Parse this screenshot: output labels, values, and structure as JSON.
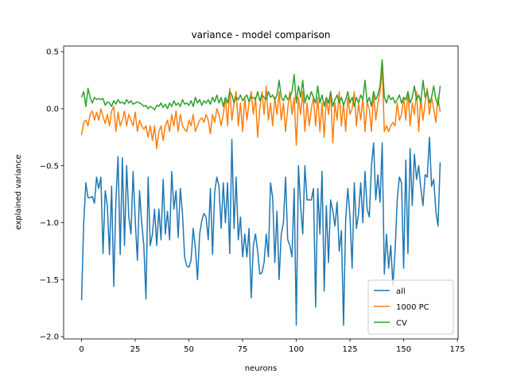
{
  "chart_data": {
    "type": "line",
    "title": "variance - model comparison",
    "xlabel": "neurons",
    "ylabel": "explained variance",
    "x": [
      0,
      1,
      2,
      3,
      4,
      5,
      6,
      7,
      8,
      9,
      10,
      11,
      12,
      13,
      14,
      15,
      16,
      17,
      18,
      19,
      20,
      21,
      22,
      23,
      24,
      25,
      26,
      27,
      28,
      29,
      30,
      31,
      32,
      33,
      34,
      35,
      36,
      37,
      38,
      39,
      40,
      41,
      42,
      43,
      44,
      45,
      46,
      47,
      48,
      49,
      50,
      51,
      52,
      53,
      54,
      55,
      56,
      57,
      58,
      59,
      60,
      61,
      62,
      63,
      64,
      65,
      66,
      67,
      68,
      69,
      70,
      71,
      72,
      73,
      74,
      75,
      76,
      77,
      78,
      79,
      80,
      81,
      82,
      83,
      84,
      85,
      86,
      87,
      88,
      89,
      90,
      91,
      92,
      93,
      94,
      95,
      96,
      97,
      98,
      99,
      100,
      101,
      102,
      103,
      104,
      105,
      106,
      107,
      108,
      109,
      110,
      111,
      112,
      113,
      114,
      115,
      116,
      117,
      118,
      119,
      120,
      121,
      122,
      123,
      124,
      125,
      126,
      127,
      128,
      129,
      130,
      131,
      132,
      133,
      134,
      135,
      136,
      137,
      138,
      139,
      140,
      141,
      142,
      143,
      144,
      145,
      146,
      147,
      148,
      149,
      150,
      151,
      152,
      153,
      154,
      155,
      156,
      157,
      158,
      159,
      160,
      161,
      162,
      163,
      164,
      165,
      166,
      167
    ],
    "series": [
      {
        "name": "all",
        "color": "#1f77b4",
        "values": [
          -1.68,
          -1.0,
          -0.65,
          -0.78,
          -0.78,
          -0.77,
          -0.83,
          -0.6,
          -0.7,
          -0.6,
          -1.27,
          -0.72,
          -0.85,
          -1.28,
          -0.68,
          -1.56,
          -0.8,
          -0.42,
          -1.28,
          -0.43,
          -1.2,
          -0.5,
          -0.95,
          -1.1,
          -0.55,
          -0.98,
          -1.33,
          -0.72,
          -1.0,
          -1.2,
          -1.67,
          -0.6,
          -1.2,
          -1.1,
          -0.88,
          -1.2,
          -0.88,
          -1.15,
          -0.62,
          -1.1,
          -0.9,
          -1.15,
          -0.55,
          -0.88,
          -0.72,
          -1.13,
          -0.7,
          -0.92,
          -1.3,
          -1.38,
          -1.39,
          -1.33,
          -1.05,
          -1.22,
          -1.5,
          -1.1,
          -0.98,
          -0.92,
          -0.95,
          -1.15,
          -0.7,
          -1.28,
          -0.73,
          -0.6,
          -0.68,
          -1.05,
          -0.65,
          -1.0,
          -0.65,
          -1.27,
          -0.27,
          -1.05,
          -0.6,
          -1.15,
          -0.95,
          -1.3,
          -1.1,
          -1.3,
          -1.05,
          -1.66,
          -1.2,
          -1.1,
          -1.25,
          -1.45,
          -1.44,
          -1.35,
          -1.1,
          -1.3,
          -0.65,
          -0.78,
          -1.35,
          -0.9,
          -1.5,
          -1.1,
          -1.0,
          -0.6,
          -1.15,
          -1.2,
          -1.3,
          -0.7,
          -1.9,
          -0.5,
          -0.85,
          -1.1,
          -0.5,
          -0.8,
          -0.8,
          -0.8,
          -0.7,
          -1.74,
          -0.7,
          -1.1,
          -0.55,
          -1.6,
          -0.85,
          -1.35,
          -0.8,
          -0.9,
          -1.03,
          -0.82,
          -1.25,
          -1.07,
          -1.9,
          -0.97,
          -0.7,
          -0.95,
          -1.4,
          -0.65,
          -1.05,
          -0.92,
          -0.65,
          -1.0,
          -0.55,
          -0.88,
          -0.95,
          -0.5,
          -0.3,
          -0.8,
          -0.58,
          -0.82,
          -0.3,
          -1.45,
          -1.1,
          -1.4,
          -1.2,
          -1.55,
          -1.25,
          -0.8,
          -0.6,
          -0.65,
          -1.4,
          -0.45,
          -1.27,
          -0.35,
          -0.85,
          -0.4,
          -0.62,
          -0.5,
          -0.7,
          -0.85,
          -0.58,
          -0.6,
          -0.25,
          -0.68,
          -0.62,
          -0.9,
          -1.03,
          -0.47
        ]
      },
      {
        "name": "1000 PC",
        "color": "#ff7f0e",
        "values": [
          -0.23,
          -0.12,
          -0.1,
          -0.15,
          -0.05,
          -0.02,
          -0.1,
          -0.03,
          -0.1,
          0.0,
          -0.07,
          -0.13,
          -0.05,
          -0.15,
          -0.02,
          0.02,
          -0.2,
          -0.03,
          -0.15,
          -0.1,
          -0.02,
          -0.15,
          -0.05,
          -0.1,
          -0.15,
          -0.03,
          -0.2,
          -0.1,
          -0.15,
          -0.18,
          -0.15,
          -0.25,
          -0.15,
          -0.28,
          -0.15,
          -0.35,
          -0.2,
          -0.15,
          -0.28,
          -0.15,
          -0.1,
          -0.2,
          -0.05,
          -0.15,
          -0.02,
          -0.2,
          -0.05,
          -0.15,
          -0.18,
          -0.2,
          -0.1,
          -0.15,
          -0.05,
          -0.2,
          -0.15,
          -0.1,
          -0.08,
          -0.12,
          -0.05,
          -0.1,
          -0.22,
          -0.05,
          -0.12,
          0.0,
          -0.05,
          -0.15,
          -0.05,
          0.1,
          -0.15,
          0.18,
          -0.1,
          0.05,
          0.15,
          -0.15,
          0.05,
          -0.2,
          0.1,
          -0.1,
          0.05,
          0.15,
          -0.05,
          0.1,
          -0.25,
          0.0,
          0.15,
          -0.05,
          0.2,
          -0.1,
          0.05,
          -0.15,
          0.1,
          -0.05,
          0.15,
          -0.1,
          0.05,
          -0.2,
          0.0,
          0.15,
          -0.05,
          0.1,
          -0.32,
          0.1,
          -0.05,
          0.15,
          -0.2,
          0.05,
          -0.15,
          0.0,
          0.1,
          -0.15,
          0.1,
          -0.2,
          0.05,
          -0.25,
          0.1,
          -0.05,
          0.15,
          -0.3,
          0.05,
          -0.1,
          0.15,
          -0.15,
          0.05,
          -0.2,
          0.1,
          -0.05,
          0.0,
          0.15,
          -0.15,
          0.05,
          -0.1,
          0.1,
          -0.2,
          0.05,
          0.0,
          -0.2,
          0.15,
          -0.1,
          0.05,
          0.15,
          0.35,
          -0.2,
          -0.15,
          -0.2,
          -0.15,
          -0.12,
          -0.15,
          0.05,
          -0.1,
          -0.05,
          0.1,
          -0.1,
          0.15,
          -0.15,
          0.05,
          -0.05,
          0.15,
          -0.2,
          0.1,
          -0.1,
          0.05,
          0.18,
          -0.05,
          0.1,
          0.0,
          -0.12,
          0.1,
          -0.03
        ]
      },
      {
        "name": "CV",
        "color": "#2ca02c",
        "values": [
          0.1,
          0.15,
          0.02,
          0.18,
          0.1,
          0.05,
          0.1,
          0.08,
          0.09,
          0.08,
          0.09,
          0.03,
          0.06,
          0.05,
          0.02,
          0.07,
          0.04,
          0.08,
          0.05,
          0.06,
          0.04,
          0.08,
          0.05,
          0.07,
          0.04,
          0.05,
          0.06,
          0.05,
          0.04,
          0.02,
          0.03,
          0.0,
          0.02,
          0.01,
          -0.01,
          0.03,
          0.02,
          0.05,
          0.01,
          0.04,
          0.0,
          0.05,
          0.02,
          0.07,
          0.03,
          0.05,
          0.02,
          0.08,
          0.04,
          0.05,
          0.03,
          0.07,
          0.02,
          0.1,
          0.05,
          0.08,
          0.03,
          0.07,
          0.05,
          0.08,
          0.04,
          0.1,
          0.06,
          0.12,
          0.05,
          0.1,
          0.02,
          0.1,
          0.05,
          0.15,
          0.12,
          0.05,
          0.1,
          0.08,
          0.12,
          0.07,
          0.1,
          0.12,
          0.06,
          0.1,
          0.1,
          0.08,
          0.15,
          0.07,
          0.12,
          0.1,
          0.08,
          0.15,
          0.1,
          0.12,
          0.08,
          0.12,
          0.25,
          0.1,
          0.07,
          0.12,
          0.08,
          0.1,
          0.15,
          0.3,
          0.05,
          0.2,
          0.1,
          0.25,
          0.05,
          0.12,
          0.08,
          0.15,
          0.1,
          0.05,
          0.2,
          0.05,
          0.12,
          0.02,
          0.1,
          0.05,
          0.15,
          0.02,
          0.08,
          0.12,
          0.05,
          0.1,
          0.03,
          0.08,
          0.15,
          0.05,
          0.1,
          0.02,
          0.1,
          0.05,
          0.12,
          0.08,
          0.25,
          0.05,
          0.1,
          0.02,
          0.15,
          0.08,
          0.12,
          0.2,
          0.43,
          0.1,
          0.05,
          0.12,
          0.08,
          0.1,
          0.05,
          0.08,
          0.12,
          0.05,
          0.1,
          0.08,
          0.15,
          0.05,
          0.1,
          0.2,
          0.08,
          0.12,
          0.05,
          0.25,
          0.1,
          0.15,
          0.05,
          0.1,
          0.2,
          0.08,
          0.03,
          0.2
        ]
      }
    ],
    "xlim": [
      -8.35,
      175.35
    ],
    "ylim": [
      -2.02,
      0.55
    ],
    "xticks": [
      0,
      25,
      50,
      75,
      100,
      125,
      150,
      175
    ],
    "yticks": [
      {
        "value": -2,
        "label": "−2.0"
      },
      {
        "value": -1.5,
        "label": "−1.5"
      },
      {
        "value": -1,
        "label": "−1.0"
      },
      {
        "value": -0.5,
        "label": "−0.5"
      },
      {
        "value": 0,
        "label": "0.0"
      },
      0.5
    ],
    "legend": "lower right",
    "grid": false
  }
}
